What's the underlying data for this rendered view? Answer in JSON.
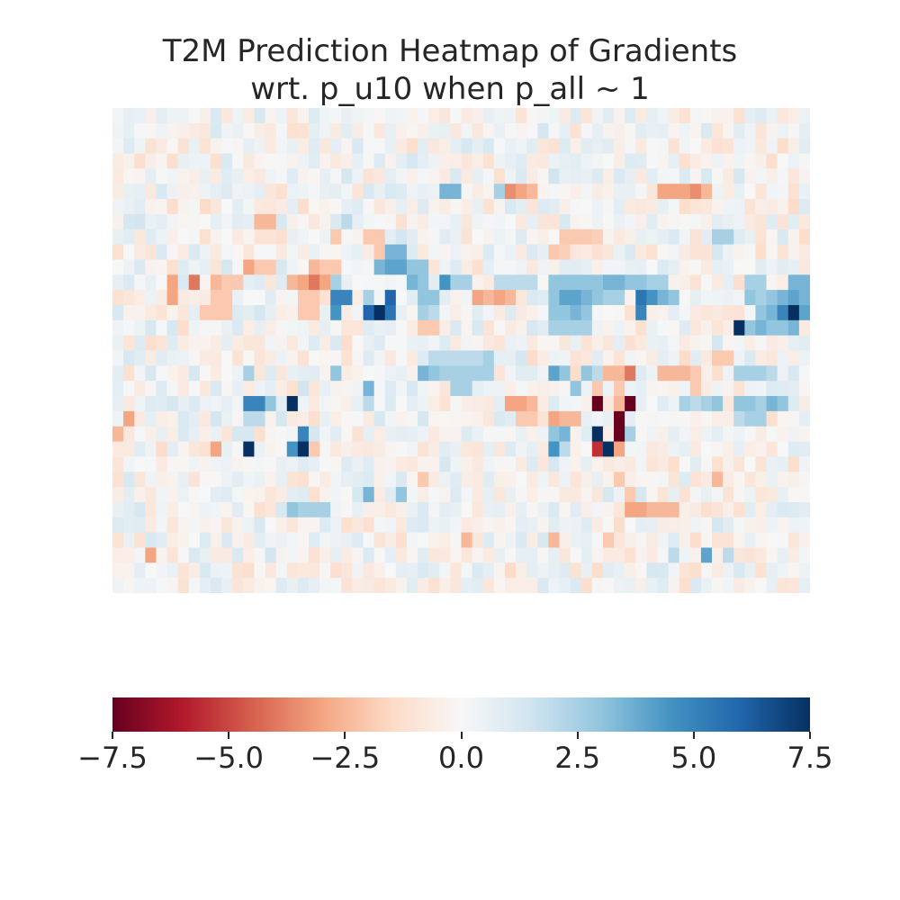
{
  "chart_data": {
    "type": "heatmap",
    "title_line1": "T2M Prediction Heatmap of Gradients",
    "title_line2": "wrt. p_u10 when p_all ~ 1",
    "xlabel": "",
    "ylabel": "",
    "nrows": 32,
    "ncols": 64,
    "colormap": "RdBu",
    "vmin": -7.5,
    "vmax": 7.5,
    "colorbar": {
      "orientation": "horizontal",
      "ticks": [
        -7.5,
        -5.0,
        -2.5,
        0.0,
        2.5,
        5.0,
        7.5
      ],
      "tick_labels": [
        "−7.5",
        "−5.0",
        "−2.5",
        "0.0",
        "2.5",
        "5.0",
        "7.5"
      ]
    },
    "cells": [
      [
        5,
        36,
        -3.5
      ],
      [
        5,
        37,
        -3.0
      ],
      [
        5,
        38,
        -2.5
      ],
      [
        5,
        50,
        -3.0
      ],
      [
        5,
        51,
        -3.0
      ],
      [
        5,
        52,
        -3.0
      ],
      [
        5,
        53,
        -3.5
      ],
      [
        5,
        54,
        -2.5
      ],
      [
        5,
        30,
        3.5
      ],
      [
        5,
        31,
        3.5
      ],
      [
        5,
        35,
        2.5
      ],
      [
        7,
        13,
        -2.5
      ],
      [
        7,
        14,
        -2.5
      ],
      [
        7,
        21,
        2.0
      ],
      [
        8,
        20,
        -2.0
      ],
      [
        8,
        23,
        -2.0
      ],
      [
        8,
        24,
        -2.0
      ],
      [
        8,
        41,
        -2.0
      ],
      [
        8,
        42,
        -2.0
      ],
      [
        8,
        43,
        -2.0
      ],
      [
        8,
        44,
        -1.8
      ],
      [
        8,
        55,
        2.5
      ],
      [
        8,
        56,
        2.5
      ],
      [
        9,
        40,
        -2.0
      ],
      [
        9,
        41,
        -1.8
      ],
      [
        9,
        24,
        -2.0
      ],
      [
        9,
        25,
        3.5
      ],
      [
        9,
        26,
        3.5
      ],
      [
        10,
        24,
        3.5
      ],
      [
        10,
        25,
        4.0
      ],
      [
        10,
        26,
        4.0
      ],
      [
        10,
        27,
        3.0
      ],
      [
        10,
        28,
        3.0
      ],
      [
        10,
        12,
        -3.0
      ],
      [
        10,
        13,
        -2.0
      ],
      [
        10,
        14,
        -2.0
      ],
      [
        10,
        18,
        -2.5
      ],
      [
        10,
        19,
        -2.0
      ],
      [
        10,
        20,
        -2.0
      ],
      [
        11,
        5,
        -3.0
      ],
      [
        11,
        7,
        -4.0
      ],
      [
        11,
        9,
        -2.5
      ],
      [
        11,
        10,
        -2.0
      ],
      [
        11,
        11,
        -2.0
      ],
      [
        11,
        16,
        -2.5
      ],
      [
        11,
        17,
        -3.0
      ],
      [
        11,
        18,
        -4.0
      ],
      [
        11,
        19,
        -3.0
      ],
      [
        11,
        20,
        2.5
      ],
      [
        11,
        27,
        3.5
      ],
      [
        11,
        28,
        3.0
      ],
      [
        11,
        30,
        4.5
      ],
      [
        11,
        31,
        2.5
      ],
      [
        11,
        32,
        2.5
      ],
      [
        11,
        35,
        2.0
      ],
      [
        11,
        36,
        2.0
      ],
      [
        11,
        37,
        2.0
      ],
      [
        11,
        38,
        2.0
      ],
      [
        11,
        40,
        3.0
      ],
      [
        11,
        41,
        3.0
      ],
      [
        11,
        42,
        3.0
      ],
      [
        11,
        43,
        3.0
      ],
      [
        11,
        44,
        3.0
      ],
      [
        11,
        45,
        3.5
      ],
      [
        11,
        46,
        3.5
      ],
      [
        11,
        47,
        3.0
      ],
      [
        11,
        48,
        3.0
      ],
      [
        11,
        49,
        2.5
      ],
      [
        11,
        50,
        2.5
      ],
      [
        11,
        58,
        2.5
      ],
      [
        11,
        59,
        2.5
      ],
      [
        11,
        62,
        3.5
      ],
      [
        11,
        63,
        3.5
      ],
      [
        12,
        5,
        -3.0
      ],
      [
        12,
        9,
        -2.0
      ],
      [
        12,
        10,
        -2.0
      ],
      [
        12,
        17,
        -2.0
      ],
      [
        12,
        18,
        -2.0
      ],
      [
        12,
        20,
        5.0
      ],
      [
        12,
        21,
        5.0
      ],
      [
        12,
        23,
        2.5
      ],
      [
        12,
        25,
        6.0
      ],
      [
        12,
        28,
        3.0
      ],
      [
        12,
        29,
        3.0
      ],
      [
        12,
        33,
        -3.0
      ],
      [
        12,
        34,
        -2.5
      ],
      [
        12,
        35,
        -3.0
      ],
      [
        12,
        36,
        -2.5
      ],
      [
        12,
        40,
        3.0
      ],
      [
        12,
        41,
        4.0
      ],
      [
        12,
        42,
        4.0
      ],
      [
        12,
        43,
        3.5
      ],
      [
        12,
        44,
        3.0
      ],
      [
        12,
        45,
        2.5
      ],
      [
        12,
        46,
        2.5
      ],
      [
        12,
        48,
        5.5
      ],
      [
        12,
        49,
        4.5
      ],
      [
        12,
        50,
        3.5
      ],
      [
        12,
        51,
        3.0
      ],
      [
        12,
        58,
        3.0
      ],
      [
        12,
        59,
        2.5
      ],
      [
        12,
        60,
        3.0
      ],
      [
        12,
        61,
        3.5
      ],
      [
        12,
        62,
        4.0
      ],
      [
        12,
        63,
        3.5
      ],
      [
        13,
        20,
        4.5
      ],
      [
        13,
        23,
        6.0
      ],
      [
        13,
        24,
        7.5
      ],
      [
        13,
        25,
        5.5
      ],
      [
        13,
        28,
        2.5
      ],
      [
        13,
        29,
        2.0
      ],
      [
        13,
        40,
        3.0
      ],
      [
        13,
        41,
        3.0
      ],
      [
        13,
        42,
        3.5
      ],
      [
        13,
        43,
        3.0
      ],
      [
        13,
        48,
        5.0
      ],
      [
        13,
        59,
        3.0
      ],
      [
        13,
        60,
        3.5
      ],
      [
        13,
        61,
        5.0
      ],
      [
        13,
        62,
        7.5
      ],
      [
        13,
        63,
        4.0
      ],
      [
        13,
        8,
        -2.0
      ],
      [
        13,
        9,
        -2.0
      ],
      [
        13,
        10,
        -2.0
      ],
      [
        13,
        17,
        -2.0
      ],
      [
        13,
        18,
        -2.0
      ],
      [
        14,
        28,
        -2.0
      ],
      [
        14,
        29,
        -2.0
      ],
      [
        14,
        40,
        2.5
      ],
      [
        14,
        41,
        2.5
      ],
      [
        14,
        42,
        2.5
      ],
      [
        14,
        43,
        2.5
      ],
      [
        14,
        57,
        7.5
      ],
      [
        14,
        58,
        3.0
      ],
      [
        14,
        59,
        3.5
      ],
      [
        14,
        60,
        3.0
      ],
      [
        14,
        61,
        3.0
      ],
      [
        14,
        62,
        3.5
      ],
      [
        16,
        29,
        2.0
      ],
      [
        16,
        30,
        2.0
      ],
      [
        16,
        31,
        2.0
      ],
      [
        16,
        32,
        2.0
      ],
      [
        16,
        33,
        2.0
      ],
      [
        16,
        34,
        2.5
      ],
      [
        16,
        55,
        -2.0
      ],
      [
        16,
        56,
        -2.0
      ],
      [
        17,
        12,
        2.5
      ],
      [
        17,
        20,
        3.0
      ],
      [
        17,
        28,
        3.5
      ],
      [
        17,
        29,
        3.0
      ],
      [
        17,
        30,
        2.5
      ],
      [
        17,
        31,
        2.5
      ],
      [
        17,
        32,
        2.5
      ],
      [
        17,
        33,
        2.5
      ],
      [
        17,
        34,
        2.5
      ],
      [
        17,
        40,
        4.0
      ],
      [
        17,
        41,
        3.0
      ],
      [
        17,
        43,
        3.0
      ],
      [
        17,
        44,
        2.0
      ],
      [
        17,
        45,
        -2.5
      ],
      [
        17,
        46,
        -2.5
      ],
      [
        17,
        47,
        -4.0
      ],
      [
        17,
        50,
        -2.5
      ],
      [
        17,
        51,
        -2.5
      ],
      [
        17,
        52,
        -2.5
      ],
      [
        17,
        53,
        -2.0
      ],
      [
        17,
        57,
        2.5
      ],
      [
        17,
        58,
        2.5
      ],
      [
        17,
        59,
        2.5
      ],
      [
        17,
        60,
        2.0
      ],
      [
        18,
        23,
        3.5
      ],
      [
        18,
        31,
        2.5
      ],
      [
        18,
        32,
        2.5
      ],
      [
        18,
        42,
        3.0
      ],
      [
        18,
        44,
        -2.0
      ],
      [
        18,
        46,
        -2.0
      ],
      [
        18,
        53,
        -2.0
      ],
      [
        19,
        12,
        5.0
      ],
      [
        19,
        13,
        5.0
      ],
      [
        19,
        14,
        3.0
      ],
      [
        19,
        16,
        7.5
      ],
      [
        19,
        23,
        2.0
      ],
      [
        19,
        36,
        -3.0
      ],
      [
        19,
        37,
        -3.0
      ],
      [
        19,
        38,
        -2.5
      ],
      [
        19,
        44,
        -7.5
      ],
      [
        19,
        46,
        -2.5
      ],
      [
        19,
        47,
        -7.5
      ],
      [
        19,
        52,
        2.5
      ],
      [
        19,
        53,
        2.0
      ],
      [
        19,
        54,
        2.5
      ],
      [
        19,
        55,
        3.0
      ],
      [
        19,
        57,
        3.0
      ],
      [
        19,
        58,
        3.0
      ],
      [
        19,
        59,
        2.5
      ],
      [
        19,
        60,
        3.5
      ],
      [
        19,
        61,
        3.0
      ],
      [
        20,
        1,
        -3.0
      ],
      [
        20,
        12,
        2.0
      ],
      [
        20,
        13,
        2.0
      ],
      [
        20,
        37,
        -2.0
      ],
      [
        20,
        38,
        -2.0
      ],
      [
        20,
        40,
        -3.0
      ],
      [
        20,
        41,
        -2.5
      ],
      [
        20,
        42,
        -2.5
      ],
      [
        20,
        46,
        -7.5
      ],
      [
        20,
        57,
        2.0
      ],
      [
        20,
        58,
        2.5
      ],
      [
        20,
        59,
        2.5
      ],
      [
        21,
        0,
        -2.5
      ],
      [
        21,
        17,
        5.0
      ],
      [
        21,
        40,
        3.0
      ],
      [
        21,
        41,
        3.5
      ],
      [
        21,
        44,
        7.5
      ],
      [
        21,
        46,
        -7.5
      ],
      [
        21,
        47,
        2.5
      ],
      [
        22,
        9,
        -3.0
      ],
      [
        22,
        12,
        7.5
      ],
      [
        22,
        16,
        4.5
      ],
      [
        22,
        17,
        7.5
      ],
      [
        22,
        40,
        4.5
      ],
      [
        22,
        41,
        2.0
      ],
      [
        22,
        44,
        -5.5
      ],
      [
        22,
        45,
        7.5
      ],
      [
        22,
        46,
        -3.0
      ],
      [
        22,
        18,
        -2.0
      ],
      [
        24,
        28,
        -2.0
      ],
      [
        24,
        46,
        -2.0
      ],
      [
        24,
        55,
        -2.5
      ],
      [
        25,
        23,
        3.5
      ],
      [
        25,
        26,
        3.0
      ],
      [
        25,
        47,
        -2.0
      ],
      [
        26,
        16,
        3.0
      ],
      [
        26,
        17,
        2.5
      ],
      [
        26,
        18,
        2.5
      ],
      [
        26,
        19,
        2.5
      ],
      [
        26,
        47,
        -3.0
      ],
      [
        26,
        48,
        -3.0
      ],
      [
        26,
        49,
        -2.5
      ],
      [
        26,
        50,
        -2.5
      ],
      [
        26,
        51,
        -2.5
      ],
      [
        28,
        32,
        -2.5
      ],
      [
        28,
        40,
        -2.5
      ],
      [
        28,
        45,
        -2.0
      ],
      [
        29,
        3,
        -3.0
      ],
      [
        29,
        51,
        2.0
      ],
      [
        29,
        54,
        4.0
      ],
      [
        29,
        56,
        2.0
      ]
    ]
  }
}
